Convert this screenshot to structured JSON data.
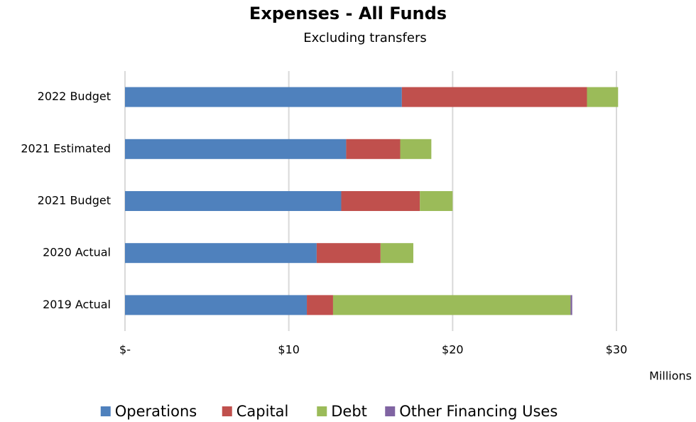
{
  "chart_data": {
    "type": "bar",
    "orientation": "horizontal",
    "stacked": true,
    "title": "Expenses - All Funds",
    "subtitle": "Excluding transfers",
    "x_unit_label": "Millions",
    "categories": [
      "2022 Budget",
      "2021 Estimated",
      "2021 Budget",
      "2020 Actual",
      "2019 Actual"
    ],
    "series": [
      {
        "name": "Operations",
        "color": "#4f81bd",
        "values": [
          16.9,
          13.5,
          13.2,
          11.7,
          11.1
        ]
      },
      {
        "name": "Capital",
        "color": "#c0504d",
        "values": [
          11.3,
          3.3,
          4.8,
          3.9,
          1.6
        ]
      },
      {
        "name": "Debt",
        "color": "#9bbb59",
        "values": [
          1.9,
          1.9,
          2.0,
          2.0,
          14.5
        ]
      },
      {
        "name": "Other Financing Uses",
        "color": "#8064a2",
        "values": [
          0,
          0,
          0,
          0,
          0.1
        ]
      }
    ],
    "xlim": [
      0,
      30
    ],
    "xticks": [
      {
        "value": 0,
        "label": "$-"
      },
      {
        "value": 10,
        "label": "$10"
      },
      {
        "value": 20,
        "label": "$20"
      },
      {
        "value": 30,
        "label": "$30"
      }
    ],
    "grid": true,
    "legend": "bottom"
  }
}
